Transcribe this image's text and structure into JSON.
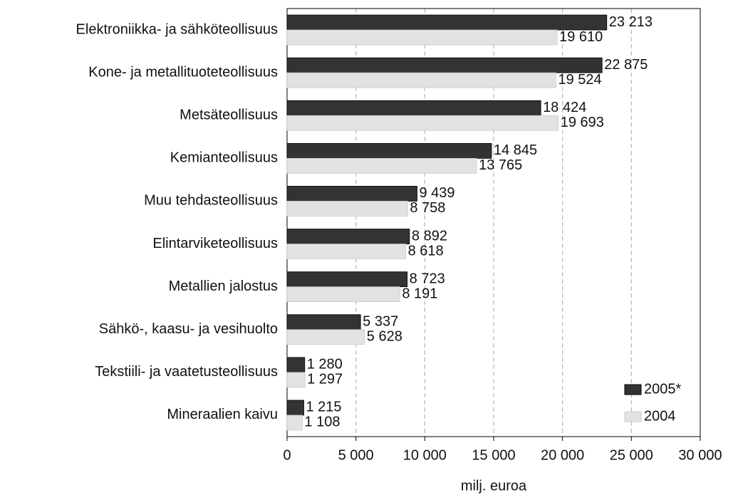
{
  "chart_data": {
    "type": "bar",
    "orientation": "horizontal",
    "x_label": "milj. euroa",
    "categories": [
      "Elektroniikka- ja sähköteollisuus",
      "Kone- ja metallituoteteollisuus",
      "Metsäteollisuus",
      "Kemianteollisuus",
      "Muu tehdasteollisuus",
      "Elintarviketeollisuus",
      "Metallien jalostus",
      "Sähkö-, kaasu- ja vesihuolto",
      "Tekstiili- ja vaatetusteollisuus",
      "Mineraalien kaivu"
    ],
    "series": [
      {
        "name": "2005*",
        "color": "#333333",
        "values": [
          23213,
          22875,
          18424,
          14845,
          9439,
          8892,
          8723,
          5337,
          1280,
          1215
        ],
        "value_labels": [
          "23 213",
          "22 875",
          "18 424",
          "14 845",
          "9 439",
          "8 892",
          "8 723",
          "5 337",
          "1 280",
          "1 215"
        ]
      },
      {
        "name": "2004",
        "color": "#e2e2e2",
        "values": [
          19610,
          19524,
          19693,
          13765,
          8758,
          8618,
          8191,
          5628,
          1297,
          1108
        ],
        "value_labels": [
          "19 610",
          "19 524",
          "19 693",
          "13 765",
          "8 758",
          "8 618",
          "8 191",
          "5 628",
          "1 297",
          "1 108"
        ]
      }
    ],
    "xlim": [
      0,
      30000
    ],
    "xticks": [
      0,
      {
        "value": 5000,
        "label": "5 000"
      },
      {
        "value": 10000,
        "label": "10 000"
      },
      {
        "value": 15000,
        "label": "15 000"
      },
      {
        "value": 20000,
        "label": "20 000"
      },
      {
        "value": 25000,
        "label": "25 000"
      },
      {
        "value": 30000,
        "label": "30 000"
      }
    ],
    "grid": true,
    "legend": "lower right"
  }
}
